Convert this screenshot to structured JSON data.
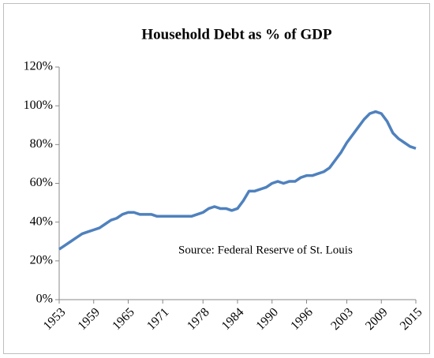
{
  "chart_data": {
    "type": "line",
    "title": "Household Debt as % of GDP",
    "annotation": "Source: Federal Reserve of St. Louis",
    "x": [
      1953,
      1954,
      1955,
      1956,
      1957,
      1958,
      1959,
      1960,
      1961,
      1962,
      1963,
      1964,
      1965,
      1966,
      1967,
      1968,
      1969,
      1970,
      1971,
      1972,
      1973,
      1974,
      1975,
      1976,
      1977,
      1978,
      1979,
      1980,
      1981,
      1982,
      1983,
      1984,
      1985,
      1986,
      1987,
      1988,
      1989,
      1990,
      1991,
      1992,
      1993,
      1994,
      1995,
      1996,
      1997,
      1998,
      1999,
      2000,
      2001,
      2002,
      2003,
      2004,
      2005,
      2006,
      2007,
      2008,
      2009,
      2010,
      2011,
      2012,
      2013,
      2014,
      2015
    ],
    "series": [
      {
        "name": "Household Debt as % of GDP",
        "color": "#4f81bd",
        "values": [
          26,
          28,
          30,
          32,
          34,
          35,
          36,
          37,
          39,
          41,
          42,
          44,
          45,
          45,
          44,
          44,
          44,
          43,
          43,
          43,
          43,
          43,
          43,
          43,
          44,
          45,
          47,
          48,
          47,
          47,
          46,
          47,
          51,
          56,
          56,
          57,
          58,
          60,
          61,
          60,
          61,
          61,
          63,
          64,
          64,
          65,
          66,
          68,
          72,
          76,
          81,
          85,
          89,
          93,
          96,
          97,
          96,
          92,
          86,
          83,
          81,
          79,
          78
        ]
      }
    ],
    "xlim": [
      1953,
      2015
    ],
    "xticks": [
      1953,
      1959,
      1965,
      1971,
      1978,
      1984,
      1990,
      1996,
      2003,
      2009,
      2015
    ],
    "ylim": [
      0,
      120
    ],
    "yticks": [
      {
        "value": 0,
        "label": "0%"
      },
      {
        "value": 20,
        "label": "20%"
      },
      {
        "value": 40,
        "label": "40%"
      },
      {
        "value": 60,
        "label": "60%"
      },
      {
        "value": 80,
        "label": "80%"
      },
      {
        "value": 100,
        "label": "100%"
      },
      {
        "value": 120,
        "label": "120%"
      }
    ],
    "grid": false
  }
}
